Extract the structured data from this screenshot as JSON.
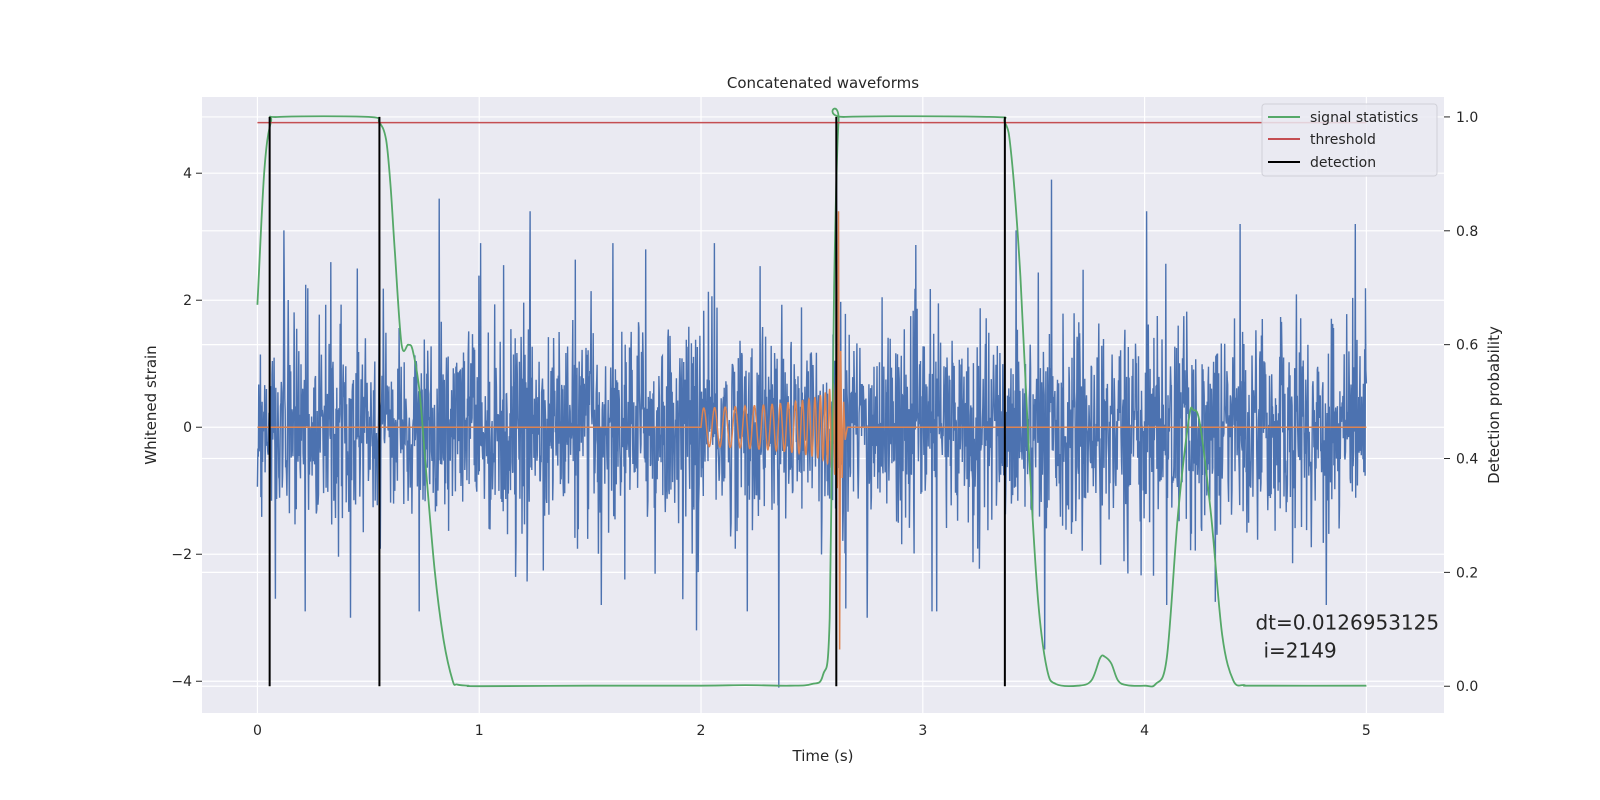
{
  "chart_data": {
    "type": "line",
    "title": "Concatenated waveforms",
    "xlabel": "Time (s)",
    "ylabel": "Whitened strain",
    "ylabel_right": "Detection probability",
    "xlim": [
      -0.25,
      5.35
    ],
    "ylim": [
      -4.5,
      5.2
    ],
    "ylim_right": [
      -0.047,
      1.035
    ],
    "xticks": [
      0,
      1,
      2,
      3,
      4,
      5
    ],
    "yticks": [
      -4,
      -2,
      0,
      2,
      4
    ],
    "yticks_right": [
      0.0,
      0.2,
      0.4,
      0.6,
      0.8,
      1.0
    ],
    "grid": true,
    "legend_position": "top-right",
    "colors": {
      "noise": "#4c72b0",
      "template": "#dd8452",
      "signal_statistics": "#55a868",
      "threshold": "#c44e52",
      "detection": "#000000",
      "background": "#eaeaf2",
      "grid": "#ffffff"
    },
    "noise_series": {
      "x_range": [
        0,
        5
      ],
      "sample_count": 2600,
      "sigma": 0.75,
      "peaks": [
        {
          "x": 0.12,
          "y": 3.1
        },
        {
          "x": 0.33,
          "y": 2.6
        },
        {
          "x": 0.45,
          "y": 2.5
        },
        {
          "x": 0.55,
          "y": 3.0
        },
        {
          "x": 0.82,
          "y": 3.6
        },
        {
          "x": 1.23,
          "y": 3.4
        },
        {
          "x": 1.75,
          "y": 2.8
        },
        {
          "x": 2.06,
          "y": 2.9
        },
        {
          "x": 2.61,
          "y": 4.8
        },
        {
          "x": 2.75,
          "y": 3.3
        },
        {
          "x": 3.42,
          "y": 3.1
        },
        {
          "x": 3.58,
          "y": 3.9
        },
        {
          "x": 4.01,
          "y": 3.4
        },
        {
          "x": 4.43,
          "y": 3.2
        },
        {
          "x": 4.95,
          "y": 3.2
        }
      ],
      "troughs": [
        {
          "x": 0.08,
          "y": -2.7
        },
        {
          "x": 0.42,
          "y": -3.0
        },
        {
          "x": 1.55,
          "y": -2.8
        },
        {
          "x": 1.98,
          "y": -3.2
        },
        {
          "x": 2.35,
          "y": -4.1
        },
        {
          "x": 2.75,
          "y": -3.0
        },
        {
          "x": 3.55,
          "y": -3.5
        },
        {
          "x": 4.1,
          "y": -2.8
        },
        {
          "x": 4.82,
          "y": -2.8
        }
      ]
    },
    "template_series": {
      "chirp_start": 2.0,
      "merger": 2.62,
      "ringdown_end": 2.66,
      "start_amplitude": 0.3,
      "peak_amplitude": 3.4,
      "min_value": -3.5
    },
    "signal_statistics": {
      "x": [
        0,
        0.03,
        0.06,
        0.1,
        0.5,
        0.55,
        0.58,
        0.6,
        0.62,
        0.65,
        0.68,
        0.7,
        0.73,
        0.76,
        0.8,
        0.84,
        0.88,
        0.9,
        0.95,
        1.0,
        1.5,
        2.0,
        2.2,
        2.4,
        2.5,
        2.55,
        2.58,
        2.6,
        2.62,
        2.65,
        3.3,
        3.37,
        3.4,
        3.44,
        3.48,
        3.52,
        3.56,
        3.6,
        3.7,
        3.76,
        3.8,
        3.82,
        3.85,
        3.88,
        3.92,
        4.0,
        4.05,
        4.1,
        4.15,
        4.2,
        4.22,
        4.25,
        4.3,
        4.35,
        4.4,
        4.45,
        4.5,
        5.0
      ],
      "values": [
        0.67,
        0.9,
        0.99,
        1.0,
        1.0,
        0.99,
        0.96,
        0.88,
        0.76,
        0.6,
        0.6,
        0.59,
        0.52,
        0.38,
        0.2,
        0.08,
        0.01,
        0.003,
        0.001,
        0.0,
        0.001,
        0.001,
        0.002,
        0.001,
        0.004,
        0.02,
        0.12,
        0.7,
        0.99,
        1.0,
        1.0,
        0.99,
        0.93,
        0.72,
        0.4,
        0.15,
        0.03,
        0.004,
        0.001,
        0.01,
        0.05,
        0.052,
        0.04,
        0.01,
        0.002,
        0.001,
        0.004,
        0.05,
        0.3,
        0.47,
        0.485,
        0.46,
        0.3,
        0.09,
        0.01,
        0.002,
        0.001,
        0.001
      ]
    },
    "threshold": {
      "value": 0.99,
      "x_range": [
        0,
        5
      ]
    },
    "detections": [
      0.055,
      0.55,
      2.61,
      3.37
    ],
    "legend": [
      {
        "key": "signal_statistics",
        "label": "signal statistics"
      },
      {
        "key": "threshold",
        "label": "threshold"
      },
      {
        "key": "detection",
        "label": "detection"
      }
    ],
    "annotation": {
      "line1": "dt=0.0126953125",
      "line2": "i=2149",
      "x": 4.5,
      "y": 0.1
    }
  }
}
